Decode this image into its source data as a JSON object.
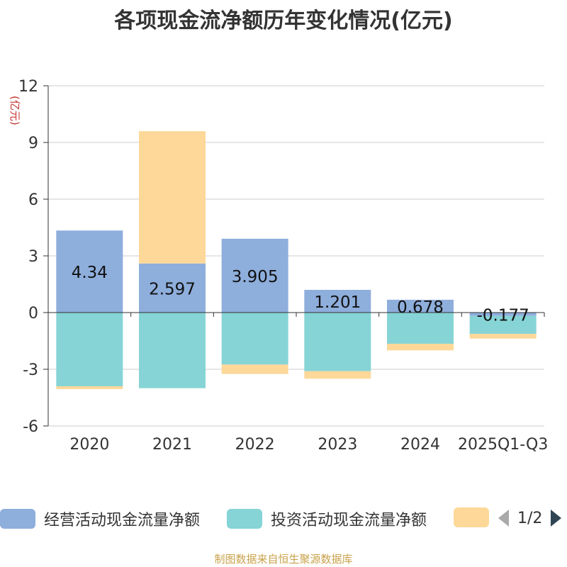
{
  "title": "各项现金流净额历年变化情况(亿元)",
  "footer": "制图数据来自恒生聚源数据库",
  "chart_data": {
    "type": "bar",
    "stacked": true,
    "title": "各项现金流净额历年变化情况(亿元)",
    "ylabel": "(亿元)",
    "ylim": [
      -6,
      12
    ],
    "yticks": [
      -6,
      -3,
      0,
      3,
      6,
      9,
      12
    ],
    "categories": [
      "2020",
      "2021",
      "2022",
      "2023",
      "2024",
      "2025Q1-Q3"
    ],
    "series": [
      {
        "name": "经营活动现金流量净额",
        "color": "#8eaedc",
        "values": [
          4.34,
          2.597,
          3.905,
          1.201,
          0.678,
          -0.177
        ],
        "labels": [
          "4.34",
          "2.597",
          "3.905",
          "1.201",
          "0.678",
          "-0.177"
        ]
      },
      {
        "name": "投资活动现金流量净额",
        "color": "#86d4d6",
        "values": [
          -3.9,
          -4.0,
          -2.75,
          -3.1,
          -1.65,
          -0.95
        ]
      },
      {
        "name": "",
        "color": "#fdd899",
        "values": [
          -0.15,
          7.0,
          -0.5,
          -0.4,
          -0.35,
          -0.25
        ]
      }
    ],
    "legend_position": "bottom",
    "pager": "1/2"
  }
}
